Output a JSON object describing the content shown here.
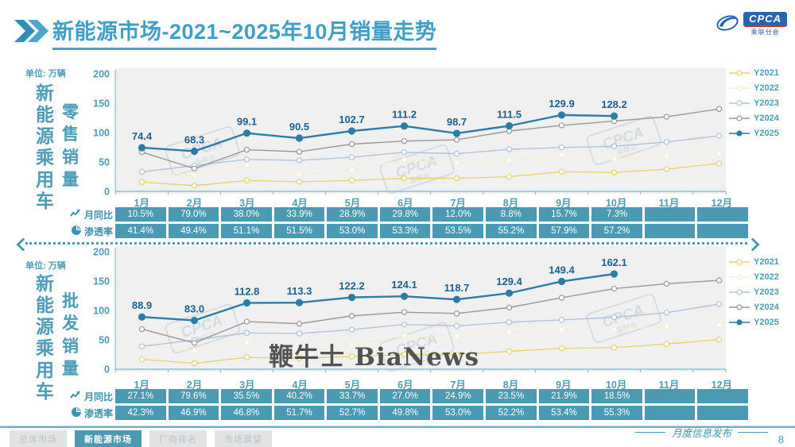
{
  "header": {
    "title": "新能源市场-2021~2025年10月销量走势",
    "logo": {
      "name": "CPCA",
      "sub": "乘联分会"
    }
  },
  "axis": {
    "unit_label": "单位: 万辆",
    "months": [
      "1月",
      "2月",
      "3月",
      "4月",
      "5月",
      "6月",
      "7月",
      "8月",
      "9月",
      "10月",
      "11月",
      "12月"
    ]
  },
  "watermark": {
    "center": "鞭牛士 BiaNews",
    "cpca": "CPCA",
    "cpca_sub": "乘联会"
  },
  "chart_data": [
    {
      "type": "line",
      "title": "新能源乘用车零售销量",
      "group_label": "新能源乘用车",
      "measure_label": "零售销量",
      "unit": "万辆",
      "x": [
        "1月",
        "2月",
        "3月",
        "4月",
        "5月",
        "6月",
        "7月",
        "8月",
        "9月",
        "10月",
        "11月",
        "12月"
      ],
      "ylim": [
        0,
        200
      ],
      "y_ticks": [
        200,
        150,
        100,
        50,
        0
      ],
      "legend_position": "right",
      "grid": false,
      "series": [
        {
          "name": "Y2021",
          "color": "#e7d36e",
          "estimated_from_plot": true,
          "values": [
            15.8,
            9.7,
            18.5,
            16.3,
            18.5,
            22.3,
            22.2,
            24.9,
            33.4,
            32.1,
            37.8,
            47.5
          ]
        },
        {
          "name": "Y2022",
          "color": "#f3eed6",
          "estimated_from_plot": true,
          "values": [
            34.7,
            27.2,
            44.5,
            28.2,
            36.0,
            53.2,
            48.6,
            52.9,
            61.1,
            55.6,
            59.8,
            64.0
          ]
        },
        {
          "name": "Y2023",
          "color": "#afc3da",
          "estimated_from_plot": true,
          "values": [
            33.2,
            43.9,
            54.3,
            52.7,
            58.0,
            66.5,
            64.1,
            71.6,
            74.6,
            76.7,
            84.1,
            94.5
          ]
        },
        {
          "name": "Y2024",
          "color": "#999999",
          "estimated_from_plot": true,
          "values": [
            66.8,
            38.8,
            70.9,
            67.4,
            80.4,
            85.6,
            87.8,
            102.7,
            112.3,
            119.6,
            127.0,
            140.2
          ]
        },
        {
          "name": "Y2025",
          "color": "#2b7da6",
          "labeled": true,
          "values": [
            74.4,
            68.3,
            99.1,
            90.5,
            102.7,
            111.2,
            98.7,
            111.5,
            129.9,
            128.2
          ]
        }
      ],
      "yoy_row": {
        "label": "月同比",
        "values": [
          "10.5%",
          "79.0%",
          "38.0%",
          "33.9%",
          "28.9%",
          "29.8%",
          "12.0%",
          "8.8%",
          "15.7%",
          "7.3%",
          "",
          ""
        ]
      },
      "penetration_row": {
        "label": "渗透率",
        "values": [
          "41.4%",
          "49.4%",
          "51.1%",
          "51.5%",
          "53.0%",
          "53.3%",
          "53.5%",
          "55.2%",
          "57.9%",
          "57.2%",
          "",
          ""
        ]
      }
    },
    {
      "type": "line",
      "title": "新能源乘用车批发销量",
      "group_label": "新能源乘用车",
      "measure_label": "批发销量",
      "unit": "万辆",
      "x": [
        "1月",
        "2月",
        "3月",
        "4月",
        "5月",
        "6月",
        "7月",
        "8月",
        "9月",
        "10月",
        "11月",
        "12月"
      ],
      "ylim": [
        0,
        200
      ],
      "y_ticks": [
        200,
        150,
        100,
        50,
        0
      ],
      "legend_position": "right",
      "grid": false,
      "series": [
        {
          "name": "Y2021",
          "color": "#e7d36e",
          "estimated_from_plot": true,
          "values": [
            16.8,
            10.0,
            20.2,
            18.4,
            21.7,
            24.8,
            24.6,
            30.4,
            35.5,
            36.8,
            42.9,
            50.5
          ]
        },
        {
          "name": "Y2022",
          "color": "#f3eed6",
          "estimated_from_plot": true,
          "values": [
            41.2,
            31.7,
            45.5,
            28.0,
            42.1,
            57.1,
            56.4,
            63.2,
            67.5,
            67.6,
            72.8,
            75.0
          ]
        },
        {
          "name": "Y2023",
          "color": "#afc3da",
          "estimated_from_plot": true,
          "values": [
            38.9,
            49.6,
            61.7,
            60.7,
            67.3,
            76.1,
            73.7,
            79.9,
            83.9,
            88.3,
            96.2,
            110.8
          ]
        },
        {
          "name": "Y2024",
          "color": "#999999",
          "estimated_from_plot": true,
          "values": [
            68.2,
            44.7,
            81.0,
            77.5,
            90.7,
            97.1,
            94.8,
            104.9,
            121.7,
            137.1,
            145.5,
            151.2
          ]
        },
        {
          "name": "Y2025",
          "color": "#2b7da6",
          "labeled": true,
          "values": [
            88.9,
            83.0,
            112.8,
            113.3,
            122.2,
            124.1,
            118.7,
            129.4,
            149.4,
            162.1
          ]
        }
      ],
      "yoy_row": {
        "label": "月同比",
        "values": [
          "27.1%",
          "79.6%",
          "35.5%",
          "40.2%",
          "33.7%",
          "27.0%",
          "24.9%",
          "23.5%",
          "21.9%",
          "18.5%",
          "",
          ""
        ]
      },
      "penetration_row": {
        "label": "渗透率",
        "values": [
          "42.3%",
          "46.9%",
          "46.8%",
          "51.7%",
          "52.7%",
          "49.8%",
          "53.0%",
          "52.2%",
          "53.4%",
          "55.3%",
          "",
          ""
        ]
      }
    }
  ],
  "footer": {
    "tabs": [
      {
        "label": "总体市场",
        "active": false
      },
      {
        "label": "新能源市场",
        "active": true
      },
      {
        "label": "厂商排名",
        "active": false
      },
      {
        "label": "市场展望",
        "active": false
      }
    ],
    "publication": "月度信息发布",
    "page": "8"
  }
}
